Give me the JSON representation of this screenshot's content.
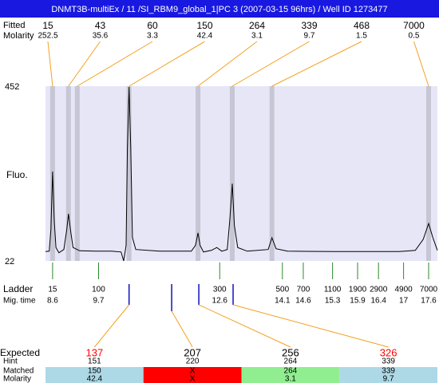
{
  "title": "DNMT3B-multiEx / 11 /SI_RBM9_global_1|PC 3 (2007-03-15 96hrs) / Well ID 1273477",
  "chart_data": {
    "type": "line",
    "y_label": "Fluo.",
    "xlim": [
      8.43,
      17.81
    ],
    "ylim": [
      22,
      452
    ],
    "yticks": [
      452,
      22
    ],
    "color": "#000000",
    "x": [
      8.43,
      8.52,
      8.56,
      8.6,
      8.64,
      8.68,
      8.75,
      8.87,
      8.94,
      8.98,
      9.04,
      9.09,
      9.25,
      9.63,
      10.01,
      10.24,
      10.3,
      10.36,
      10.39,
      10.43,
      10.47,
      10.51,
      10.59,
      11.16,
      11.92,
      12.02,
      12.08,
      12.13,
      12.21,
      12.4,
      12.53,
      12.65,
      12.78,
      12.84,
      12.9,
      12.95,
      13.03,
      13.26,
      13.76,
      13.85,
      13.95,
      14.22,
      15.36,
      16.89,
      17.28,
      17.47,
      17.6,
      17.7,
      17.81
    ],
    "values": [
      45,
      46,
      100,
      242,
      120,
      55,
      42,
      50,
      100,
      138,
      90,
      55,
      47,
      46,
      46,
      44,
      22,
      60,
      300,
      450,
      300,
      80,
      50,
      46,
      46,
      60,
      91,
      60,
      44,
      48,
      55,
      46,
      50,
      120,
      212,
      110,
      55,
      46,
      50,
      79,
      52,
      46,
      45,
      45,
      48,
      75,
      114,
      80,
      48
    ],
    "peaks": {
      "row_labels": [
        "Fitted",
        "Molarity"
      ],
      "sizes": [
        15,
        43,
        60,
        150,
        264,
        339,
        468,
        7000
      ],
      "molarity": [
        252.5,
        35.6,
        3.3,
        42.4,
        3.1,
        9.7,
        1.5,
        0.5
      ],
      "x": [
        8.6,
        8.98,
        9.19,
        10.43,
        12.08,
        12.9,
        13.85,
        17.6
      ]
    },
    "ladder": {
      "row_labels": [
        "Ladder",
        "Mig. time"
      ],
      "sizes": [
        15,
        100,
        300,
        500,
        700,
        1100,
        1900,
        2900,
        4900,
        7000
      ],
      "mig_time": [
        8.6,
        9.7,
        12.6,
        14.1,
        14.6,
        15.3,
        15.9,
        16.4,
        17,
        17.6
      ]
    },
    "expected": {
      "row_labels": [
        "Expected",
        "Hint",
        "Matched",
        "Molarity"
      ],
      "expected": [
        137,
        207,
        256,
        326
      ],
      "expected_colors": [
        "#ff0000",
        "#000000",
        "#000000",
        "#ff0000"
      ],
      "hint": [
        151,
        220,
        264,
        339
      ],
      "matched": [
        150,
        "X",
        264,
        339
      ],
      "molarity": [
        42.4,
        "X",
        3.1,
        9.7
      ],
      "cell_colors": [
        "#add8e6",
        "#ff0000",
        "#90ee90",
        "#add8e6"
      ],
      "x": [
        10.43,
        11.45,
        12.1,
        12.92
      ]
    }
  }
}
